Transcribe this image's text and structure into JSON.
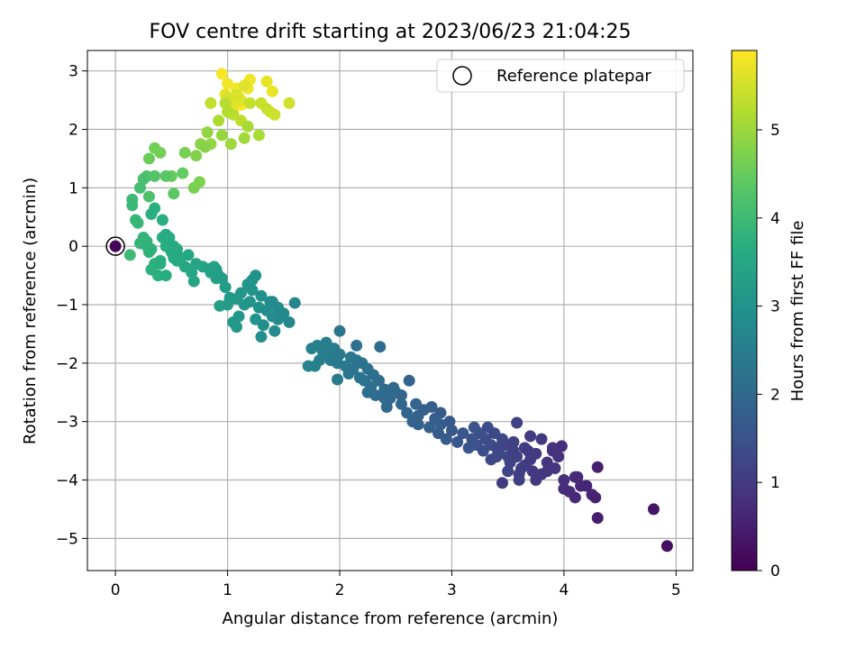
{
  "chart_data": {
    "type": "scatter",
    "title": "FOV centre drift starting at 2023/06/23 21:04:25",
    "xlabel": "Angular distance from reference (arcmin)",
    "ylabel": "Rotation from reference (arcmin)",
    "xlim": [
      -0.25,
      5.15
    ],
    "ylim": [
      -5.55,
      3.35
    ],
    "xticks": [
      0,
      1,
      2,
      3,
      4,
      5
    ],
    "yticks": [
      -5,
      -4,
      -3,
      -2,
      -1,
      0,
      1,
      2,
      3
    ],
    "grid": true,
    "legend": {
      "position": "top-right",
      "entries": [
        "Reference platepar"
      ]
    },
    "colorbar": {
      "label": "Hours from first FF file",
      "colormap": "viridis",
      "range": [
        0,
        5.9
      ],
      "ticks": [
        0,
        1,
        2,
        3,
        4,
        5
      ]
    },
    "reference_point": {
      "x": 0.0,
      "y": 0.0,
      "c": 0.05
    },
    "points": [
      [
        4.92,
        -5.13,
        0.25
      ],
      [
        4.8,
        -4.5,
        0.35
      ],
      [
        4.3,
        -4.65,
        0.5
      ],
      [
        4.28,
        -4.3,
        0.55
      ],
      [
        4.25,
        -4.25,
        0.6
      ],
      [
        4.2,
        -4.1,
        0.62
      ],
      [
        4.15,
        -4.1,
        0.65
      ],
      [
        4.1,
        -4.3,
        0.7
      ],
      [
        4.05,
        -4.2,
        0.72
      ],
      [
        4.1,
        -3.95,
        0.75
      ],
      [
        4.0,
        -4.0,
        0.78
      ],
      [
        3.98,
        -3.42,
        0.8
      ],
      [
        3.95,
        -3.6,
        0.82
      ],
      [
        3.9,
        -3.5,
        0.85
      ],
      [
        3.92,
        -3.8,
        0.88
      ],
      [
        3.85,
        -3.7,
        0.9
      ],
      [
        3.8,
        -3.9,
        0.92
      ],
      [
        3.75,
        -4.0,
        0.95
      ],
      [
        3.72,
        -3.85,
        0.98
      ],
      [
        3.7,
        -3.65,
        1.0
      ],
      [
        3.68,
        -3.5,
        1.02
      ],
      [
        3.65,
        -3.75,
        1.05
      ],
      [
        3.62,
        -3.8,
        1.08
      ],
      [
        3.6,
        -3.9,
        1.1
      ],
      [
        3.58,
        -3.6,
        1.12
      ],
      [
        3.55,
        -3.5,
        1.15
      ],
      [
        3.52,
        -3.7,
        1.18
      ],
      [
        3.5,
        -3.6,
        1.2
      ],
      [
        3.48,
        -3.4,
        1.22
      ],
      [
        3.45,
        -3.3,
        1.25
      ],
      [
        3.42,
        -3.5,
        1.28
      ],
      [
        3.4,
        -3.6,
        1.3
      ],
      [
        3.38,
        -3.2,
        1.32
      ],
      [
        3.35,
        -3.4,
        1.35
      ],
      [
        3.32,
        -3.1,
        1.38
      ],
      [
        3.3,
        -3.3,
        1.4
      ],
      [
        3.28,
        -3.5,
        1.42
      ],
      [
        3.25,
        -3.2,
        1.45
      ],
      [
        3.22,
        -3.4,
        1.48
      ],
      [
        3.2,
        -3.1,
        1.5
      ],
      [
        3.18,
        -3.3,
        1.52
      ],
      [
        3.15,
        -3.45,
        1.55
      ],
      [
        3.1,
        -3.2,
        1.58
      ],
      [
        3.05,
        -3.35,
        1.6
      ],
      [
        3.0,
        -3.15,
        1.62
      ],
      [
        3.45,
        -4.05,
        1.05
      ],
      [
        3.58,
        -3.02,
        1.15
      ],
      [
        3.8,
        -3.3,
        0.95
      ],
      [
        3.9,
        -3.45,
        0.85
      ],
      [
        3.7,
        -3.25,
        1.05
      ],
      [
        3.55,
        -3.35,
        1.12
      ],
      [
        3.4,
        -3.45,
        1.25
      ],
      [
        3.35,
        -3.65,
        1.3
      ],
      [
        3.65,
        -3.45,
        1.08
      ],
      [
        3.75,
        -3.55,
        1.0
      ],
      [
        3.85,
        -3.85,
        0.9
      ],
      [
        4.0,
        -4.15,
        0.78
      ],
      [
        4.12,
        -3.95,
        0.7
      ],
      [
        4.3,
        -3.78,
        0.5
      ],
      [
        3.5,
        -3.85,
        1.18
      ],
      [
        3.6,
        -4.0,
        1.1
      ],
      [
        2.98,
        -3.0,
        1.65
      ],
      [
        2.95,
        -3.3,
        1.68
      ],
      [
        2.9,
        -2.85,
        1.7
      ],
      [
        2.88,
        -3.2,
        1.72
      ],
      [
        2.85,
        -2.95,
        1.75
      ],
      [
        2.82,
        -2.75,
        1.78
      ],
      [
        2.8,
        -3.1,
        1.8
      ],
      [
        2.75,
        -2.8,
        1.82
      ],
      [
        2.7,
        -2.9,
        1.85
      ],
      [
        2.68,
        -2.7,
        1.88
      ],
      [
        2.65,
        -3.0,
        1.9
      ],
      [
        2.6,
        -2.85,
        1.92
      ],
      [
        2.55,
        -2.7,
        1.95
      ],
      [
        2.5,
        -2.5,
        1.98
      ],
      [
        2.45,
        -2.6,
        2.0
      ],
      [
        2.42,
        -2.75,
        2.02
      ],
      [
        2.4,
        -2.45,
        2.05
      ],
      [
        2.35,
        -2.3,
        2.08
      ],
      [
        2.32,
        -2.55,
        2.1
      ],
      [
        2.3,
        -2.2,
        2.12
      ],
      [
        2.28,
        -2.4,
        2.15
      ],
      [
        2.25,
        -2.1,
        2.18
      ],
      [
        2.22,
        -2.3,
        2.2
      ],
      [
        2.2,
        -2.0,
        2.22
      ],
      [
        2.18,
        -2.25,
        2.25
      ],
      [
        2.15,
        -1.95,
        2.28
      ],
      [
        2.12,
        -2.1,
        2.3
      ],
      [
        2.1,
        -1.9,
        2.32
      ],
      [
        2.05,
        -2.05,
        2.35
      ],
      [
        2.0,
        -1.85,
        2.38
      ],
      [
        1.98,
        -2.0,
        2.4
      ],
      [
        1.95,
        -1.75,
        2.42
      ],
      [
        1.92,
        -1.95,
        2.45
      ],
      [
        1.9,
        -1.85,
        2.48
      ],
      [
        1.88,
        -1.65,
        2.5
      ],
      [
        1.85,
        -1.8,
        2.52
      ],
      [
        1.82,
        -1.95,
        2.55
      ],
      [
        1.8,
        -1.7,
        2.58
      ],
      [
        1.78,
        -2.05,
        2.6
      ],
      [
        1.75,
        -1.75,
        2.62
      ],
      [
        1.72,
        -2.05,
        2.65
      ],
      [
        2.0,
        -1.45,
        2.3
      ],
      [
        2.15,
        -1.7,
        2.2
      ],
      [
        2.36,
        -1.72,
        2.05
      ],
      [
        2.62,
        -2.3,
        1.9
      ],
      [
        2.48,
        -2.42,
        1.98
      ],
      [
        2.25,
        -2.5,
        2.15
      ],
      [
        2.4,
        -2.6,
        2.03
      ],
      [
        1.98,
        -2.28,
        2.4
      ],
      [
        2.08,
        -2.18,
        2.33
      ],
      [
        2.55,
        -2.55,
        1.93
      ],
      [
        2.7,
        -3.05,
        1.85
      ],
      [
        2.9,
        -3.05,
        1.72
      ],
      [
        1.6,
        -0.97,
        2.7
      ],
      [
        1.55,
        -1.3,
        2.72
      ],
      [
        1.5,
        -1.15,
        2.75
      ],
      [
        1.45,
        -1.25,
        2.78
      ],
      [
        1.42,
        -1.45,
        2.8
      ],
      [
        1.4,
        -1.2,
        2.82
      ],
      [
        1.38,
        -0.95,
        2.85
      ],
      [
        1.35,
        -1.1,
        2.88
      ],
      [
        1.32,
        -1.35,
        2.9
      ],
      [
        1.3,
        -0.85,
        2.92
      ],
      [
        1.28,
        -1.05,
        2.95
      ],
      [
        1.25,
        -1.25,
        2.98
      ],
      [
        1.22,
        -0.75,
        3.0
      ],
      [
        1.2,
        -0.95,
        3.02
      ],
      [
        1.18,
        -0.65,
        3.05
      ],
      [
        1.15,
        -1.0,
        3.08
      ],
      [
        1.12,
        -0.8,
        3.1
      ],
      [
        1.1,
        -1.2,
        3.12
      ],
      [
        1.08,
        -0.9,
        3.15
      ],
      [
        1.05,
        -1.3,
        3.18
      ],
      [
        1.02,
        -0.88,
        3.2
      ],
      [
        1.0,
        -1.0,
        3.22
      ],
      [
        0.98,
        -0.7,
        3.25
      ],
      [
        0.95,
        -0.55,
        3.28
      ],
      [
        0.92,
        -0.5,
        3.3
      ],
      [
        0.9,
        -0.4,
        3.32
      ],
      [
        0.88,
        -0.35,
        3.35
      ],
      [
        0.85,
        -0.45,
        3.38
      ],
      [
        0.93,
        -1.02,
        3.3
      ],
      [
        1.3,
        -1.55,
        2.9
      ],
      [
        1.08,
        -1.38,
        3.12
      ],
      [
        1.22,
        -0.58,
        3.03
      ],
      [
        1.25,
        -0.5,
        3.0
      ],
      [
        1.4,
        -0.95,
        2.82
      ],
      [
        1.45,
        -1.05,
        2.78
      ],
      [
        0.78,
        -0.35,
        3.42
      ],
      [
        0.72,
        -0.3,
        3.45
      ],
      [
        0.7,
        -0.6,
        3.48
      ],
      [
        0.65,
        -0.15,
        3.5
      ],
      [
        0.62,
        -0.35,
        3.52
      ],
      [
        0.58,
        -0.2,
        3.55
      ],
      [
        0.55,
        -0.05,
        3.58
      ],
      [
        0.5,
        -0.1,
        3.6
      ],
      [
        0.52,
        -0.2,
        3.62
      ],
      [
        0.45,
        0.0,
        3.65
      ],
      [
        0.42,
        0.15,
        3.68
      ],
      [
        0.4,
        -0.25,
        3.7
      ],
      [
        0.38,
        -0.5,
        3.72
      ],
      [
        0.35,
        -0.3,
        3.75
      ],
      [
        0.32,
        -0.4,
        3.78
      ],
      [
        0.3,
        -0.1,
        3.8
      ],
      [
        0.28,
        0.0,
        3.82
      ],
      [
        0.25,
        0.15,
        3.85
      ],
      [
        0.22,
        0.05,
        3.88
      ],
      [
        0.2,
        0.4,
        3.9
      ],
      [
        0.18,
        0.45,
        3.92
      ],
      [
        0.15,
        0.7,
        3.95
      ],
      [
        0.13,
        -0.15,
        3.98
      ],
      [
        0.32,
        0.55,
        3.72
      ],
      [
        0.35,
        0.65,
        3.7
      ],
      [
        0.42,
        0.45,
        3.68
      ],
      [
        0.45,
        0.2,
        3.66
      ],
      [
        0.48,
        0.15,
        3.64
      ],
      [
        0.52,
        0.0,
        3.6
      ],
      [
        0.28,
        0.08,
        3.82
      ],
      [
        0.4,
        -0.3,
        3.7
      ],
      [
        0.45,
        -0.5,
        3.66
      ],
      [
        0.55,
        -0.25,
        3.58
      ],
      [
        0.68,
        -0.45,
        3.48
      ],
      [
        0.85,
        -0.38,
        3.38
      ],
      [
        0.9,
        -0.55,
        3.35
      ],
      [
        0.32,
        -0.05,
        3.78
      ],
      [
        0.15,
        0.8,
        4.0
      ],
      [
        0.22,
        1.0,
        4.1
      ],
      [
        0.25,
        1.15,
        4.15
      ],
      [
        0.3,
        0.85,
        4.2
      ],
      [
        0.28,
        1.2,
        4.25
      ],
      [
        0.35,
        1.2,
        4.3
      ],
      [
        0.45,
        1.2,
        4.35
      ],
      [
        0.52,
        0.9,
        4.4
      ],
      [
        0.6,
        1.25,
        4.45
      ],
      [
        0.5,
        1.2,
        4.5
      ],
      [
        0.3,
        1.5,
        4.55
      ],
      [
        0.35,
        1.68,
        4.6
      ],
      [
        0.4,
        1.6,
        4.62
      ],
      [
        0.62,
        1.6,
        4.65
      ],
      [
        0.7,
        1.0,
        4.68
      ],
      [
        0.75,
        1.1,
        4.72
      ],
      [
        0.72,
        1.55,
        4.75
      ],
      [
        0.8,
        1.7,
        4.8
      ],
      [
        0.76,
        1.75,
        4.85
      ],
      [
        0.82,
        1.95,
        4.9
      ],
      [
        0.85,
        1.75,
        4.92
      ],
      [
        0.95,
        1.9,
        4.95
      ],
      [
        1.03,
        1.75,
        5.0
      ],
      [
        1.15,
        1.85,
        5.05
      ],
      [
        1.18,
        2.05,
        5.1
      ],
      [
        0.92,
        2.15,
        5.15
      ],
      [
        1.28,
        1.9,
        5.12
      ],
      [
        1.0,
        2.3,
        5.2
      ],
      [
        0.98,
        2.45,
        5.25
      ],
      [
        1.05,
        2.25,
        5.3
      ],
      [
        1.12,
        2.15,
        5.32
      ],
      [
        0.85,
        2.45,
        5.35
      ],
      [
        1.2,
        2.45,
        5.38
      ],
      [
        1.3,
        2.45,
        5.4
      ],
      [
        1.35,
        2.35,
        5.42
      ],
      [
        1.42,
        2.25,
        5.45
      ],
      [
        1.55,
        2.45,
        5.48
      ],
      [
        1.38,
        2.3,
        5.5
      ],
      [
        1.0,
        2.55,
        5.55
      ],
      [
        1.08,
        2.6,
        5.58
      ],
      [
        1.12,
        2.5,
        5.6
      ],
      [
        1.15,
        2.75,
        5.62
      ],
      [
        1.05,
        2.45,
        5.65
      ],
      [
        0.98,
        2.6,
        5.68
      ],
      [
        1.35,
        2.82,
        5.7
      ],
      [
        1.4,
        2.65,
        5.72
      ],
      [
        1.2,
        2.85,
        5.75
      ],
      [
        1.18,
        2.7,
        5.78
      ],
      [
        1.0,
        2.78,
        5.8
      ],
      [
        1.08,
        2.7,
        5.82
      ],
      [
        1.15,
        2.45,
        5.84
      ],
      [
        0.95,
        2.95,
        5.86
      ],
      [
        1.02,
        2.5,
        5.88
      ],
      [
        1.1,
        2.55,
        5.88
      ],
      [
        1.05,
        2.3,
        5.86
      ],
      [
        1.12,
        2.42,
        5.85
      ]
    ]
  }
}
